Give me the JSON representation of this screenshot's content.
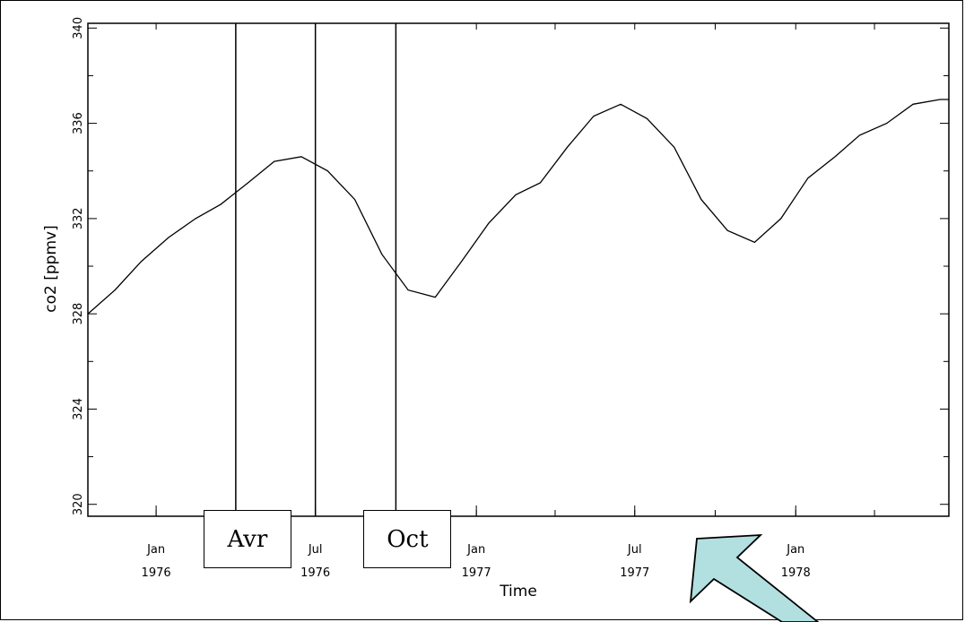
{
  "chart_data": {
    "type": "line",
    "title": "",
    "xlabel": "Time",
    "ylabel": "co2 [ppmv]",
    "ylim": [
      319.5,
      340.2
    ],
    "xlim": [
      "1975-10-15",
      "1978-06-25"
    ],
    "y_ticks": [
      320,
      324,
      328,
      332,
      336,
      340
    ],
    "x_ticks": [
      {
        "date": "1976-01-01",
        "label": [
          "Jan",
          "1976"
        ]
      },
      {
        "date": "1976-07-01",
        "label": [
          "Jul",
          "1976"
        ]
      },
      {
        "date": "1977-01-01",
        "label": [
          "Jan",
          "1977"
        ]
      },
      {
        "date": "1977-07-01",
        "label": [
          "Jul",
          "1977"
        ]
      },
      {
        "date": "1978-01-01",
        "label": [
          "Jan",
          "1978"
        ]
      }
    ],
    "grid": false,
    "series": [
      {
        "x": [
          "1975-10-15",
          "1975-11-15",
          "1975-12-15",
          "1976-01-15",
          "1976-02-15",
          "1976-03-15",
          "1976-04-15",
          "1976-05-15",
          "1976-06-15",
          "1976-07-15",
          "1976-08-15",
          "1976-09-15",
          "1976-10-15",
          "1976-11-15",
          "1976-12-15",
          "1977-01-15",
          "1977-02-15",
          "1977-03-15",
          "1977-04-15",
          "1977-05-15",
          "1977-06-15",
          "1977-07-15",
          "1977-08-15",
          "1977-09-15",
          "1977-10-15",
          "1977-11-15",
          "1977-12-15",
          "1978-01-15",
          "1978-02-15",
          "1978-03-15",
          "1978-04-15",
          "1978-05-15",
          "1978-06-15",
          "1978-06-25"
        ],
        "values": [
          328.0,
          329.0,
          330.2,
          331.2,
          332.0,
          332.6,
          333.5,
          334.4,
          334.6,
          334.0,
          332.8,
          330.5,
          329.0,
          328.7,
          330.2,
          331.8,
          333.0,
          333.5,
          335.0,
          336.3,
          336.8,
          336.2,
          335.0,
          332.8,
          331.5,
          331.0,
          332.0,
          333.7,
          334.6,
          335.5,
          336.0,
          336.8,
          337.0,
          337.0
        ]
      }
    ]
  },
  "annotations": {
    "vertical_markers": [
      "1976-04-01",
      "1976-07-01",
      "1976-10-01"
    ],
    "boxes": [
      {
        "label": "Avr",
        "date": "1976-04-01"
      },
      {
        "label": "Oct",
        "date": "1976-10-01"
      }
    ],
    "arrow_color": "#b2dfe0"
  }
}
